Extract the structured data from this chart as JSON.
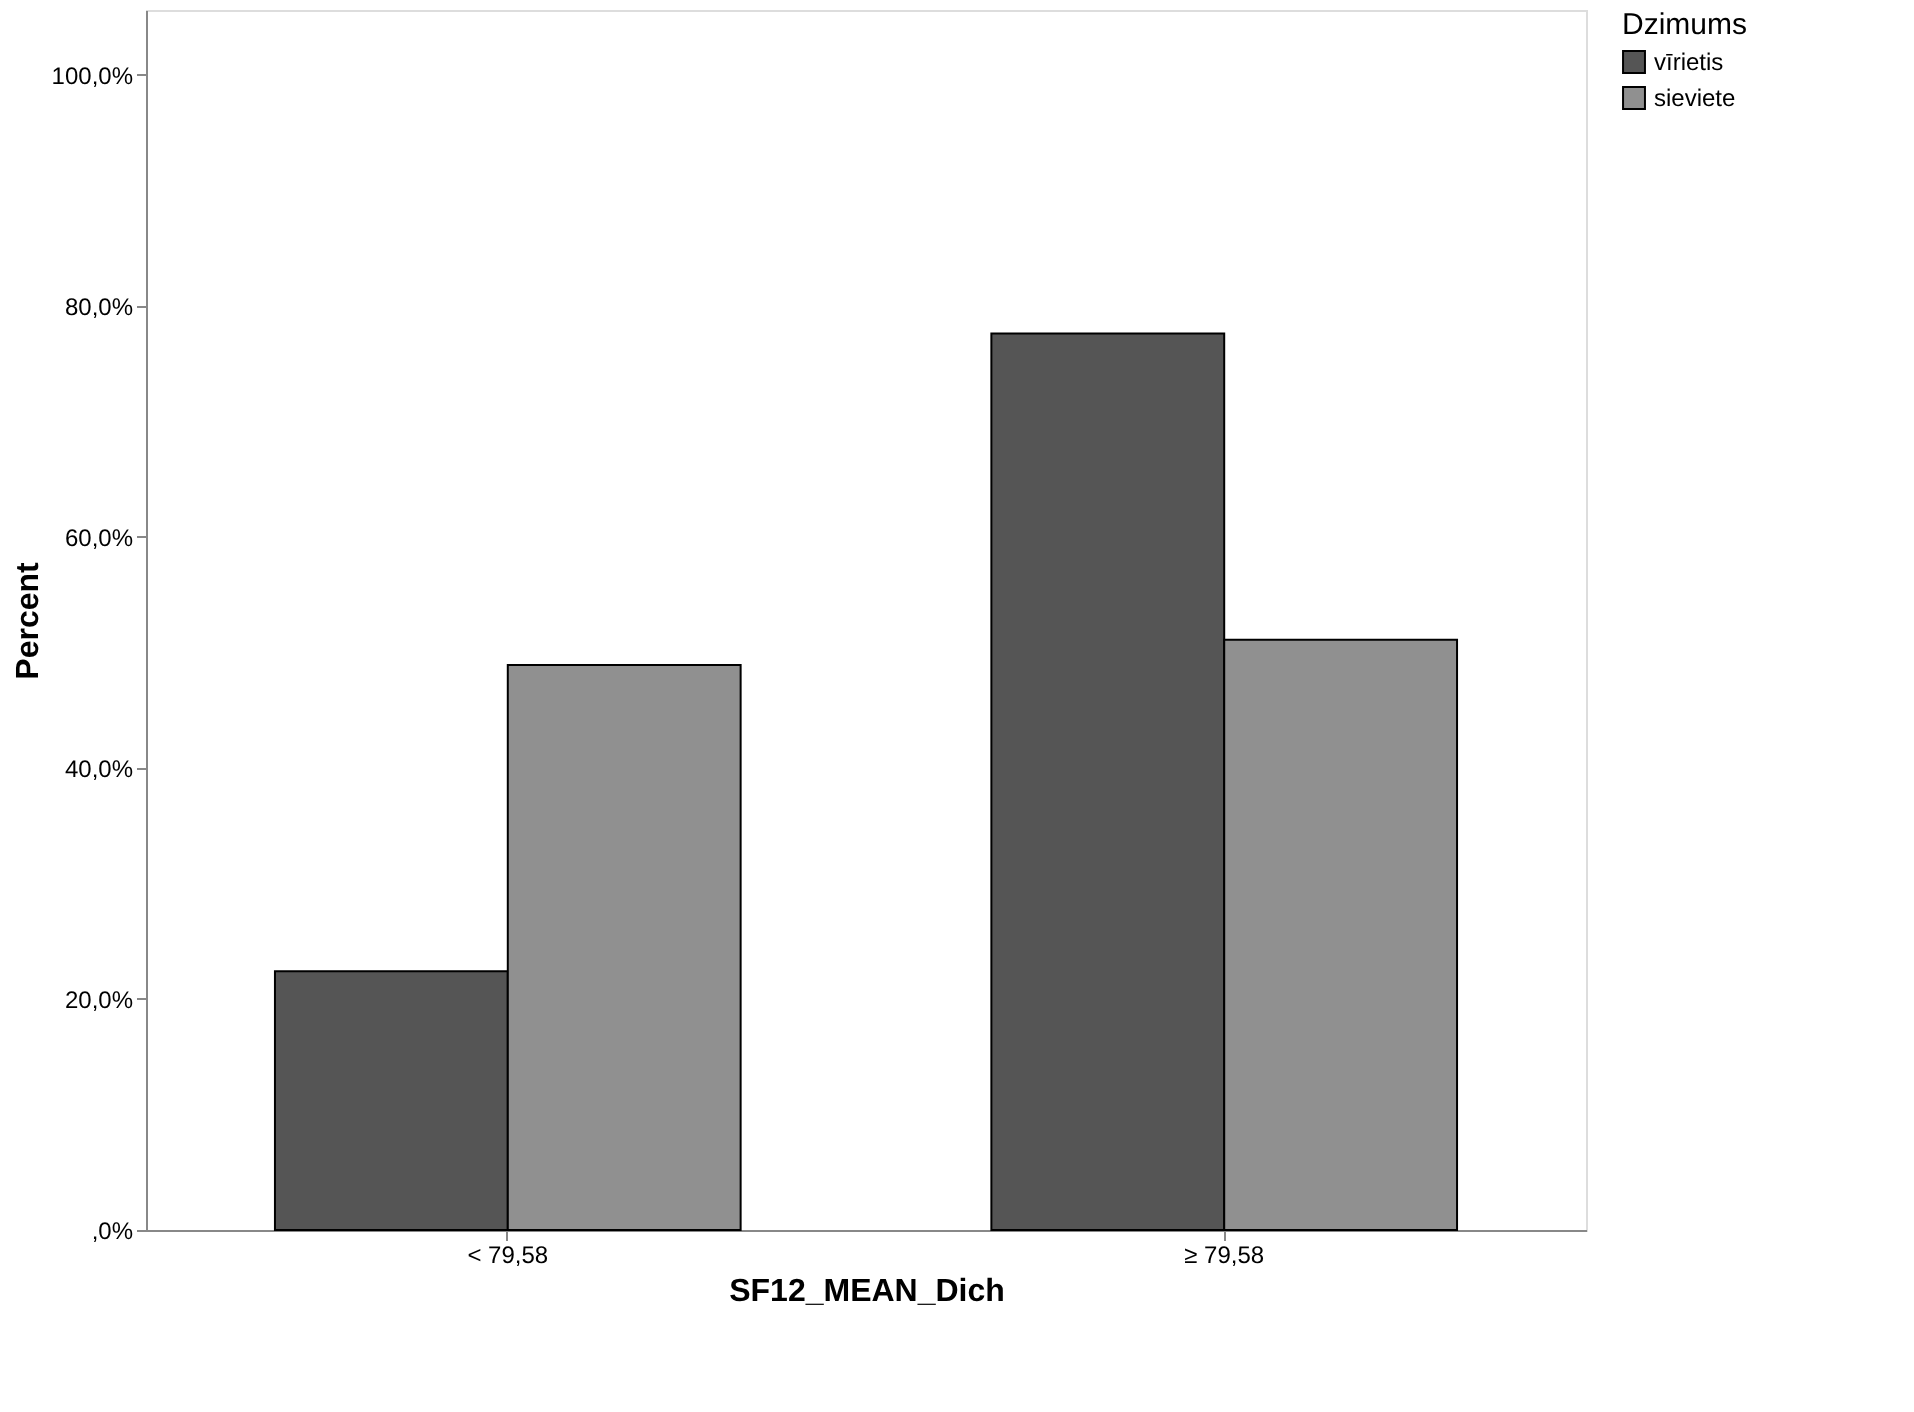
{
  "chart_data": {
    "type": "bar",
    "xlabel": "SF12_MEAN_Dich",
    "ylabel": "Percent",
    "legend_title": "Dzimums",
    "legend": "top right",
    "grid": false,
    "categories": [
      "< 79,58",
      "≥ 79,58"
    ],
    "series": [
      {
        "name": "vīrietis",
        "color": "#555555",
        "values": [
          22.4,
          77.6
        ]
      },
      {
        "name": "sieviete",
        "color": "#909090",
        "values": [
          48.9,
          51.1
        ]
      }
    ],
    "ylim": [
      0,
      105.6
    ],
    "yticks": [
      {
        "value": 0,
        "label": ",0%"
      },
      {
        "value": 20,
        "label": "20,0%"
      },
      {
        "value": 40,
        "label": "40,0%"
      },
      {
        "value": 60,
        "label": "60,0%"
      },
      {
        "value": 80,
        "label": "80,0%"
      },
      {
        "value": 100,
        "label": "100,0%"
      }
    ]
  }
}
